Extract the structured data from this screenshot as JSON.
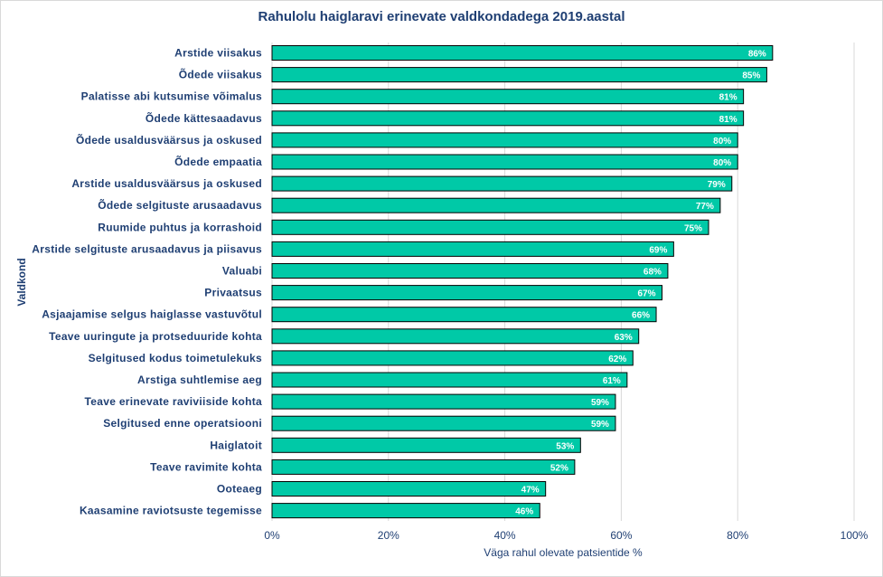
{
  "chart_data": {
    "type": "bar",
    "orientation": "horizontal",
    "title": "Rahulolu haiglaravi erinevate valdkondadega 2019.aastal",
    "xlabel": "Väga rahul olevate patsientide %",
    "ylabel": "Valdkond",
    "xlim": [
      0,
      100
    ],
    "xticks": [
      "0%",
      "20%",
      "40%",
      "60%",
      "80%",
      "100%"
    ],
    "xtick_values": [
      0,
      20,
      40,
      60,
      80,
      100
    ],
    "grid": "vertical",
    "bar_color": "#00c9a7",
    "bar_edge_color": "#000000",
    "label_color": "#1f3f73",
    "categories": [
      "Arstide viisakus",
      "Õdede viisakus",
      "Palatisse abi kutsumise võimalus",
      "Õdede kättesaadavus",
      "Õdede usaldusväärsus ja oskused",
      "Õdede empaatia",
      "Arstide usaldusväärsus ja oskused",
      "Õdede selgituste arusaadavus",
      "Ruumide puhtus ja korrashoid",
      "Arstide selgituste arusaadavus ja piisavus",
      "Valuabi",
      "Privaatsus",
      "Asjaajamise selgus haiglasse vastuvõtul",
      "Teave uuringute ja protseduuride kohta",
      "Selgitused kodus toimetulekuks",
      "Arstiga suhtlemise aeg",
      "Teave erinevate raviviiside kohta",
      "Selgitused enne operatsiooni",
      "Haiglatoit",
      "Teave ravimite kohta",
      "Ooteaeg",
      "Kaasamine raviotsuste tegemisse"
    ],
    "values": [
      86,
      85,
      81,
      81,
      80,
      80,
      79,
      77,
      75,
      69,
      68,
      67,
      66,
      63,
      62,
      61,
      59,
      59,
      53,
      52,
      47,
      46
    ],
    "value_labels": [
      "86%",
      "85%",
      "81%",
      "81%",
      "80%",
      "80%",
      "79%",
      "77%",
      "75%",
      "69%",
      "68%",
      "67%",
      "66%",
      "63%",
      "62%",
      "61%",
      "59%",
      "59%",
      "53%",
      "52%",
      "47%",
      "46%"
    ]
  }
}
